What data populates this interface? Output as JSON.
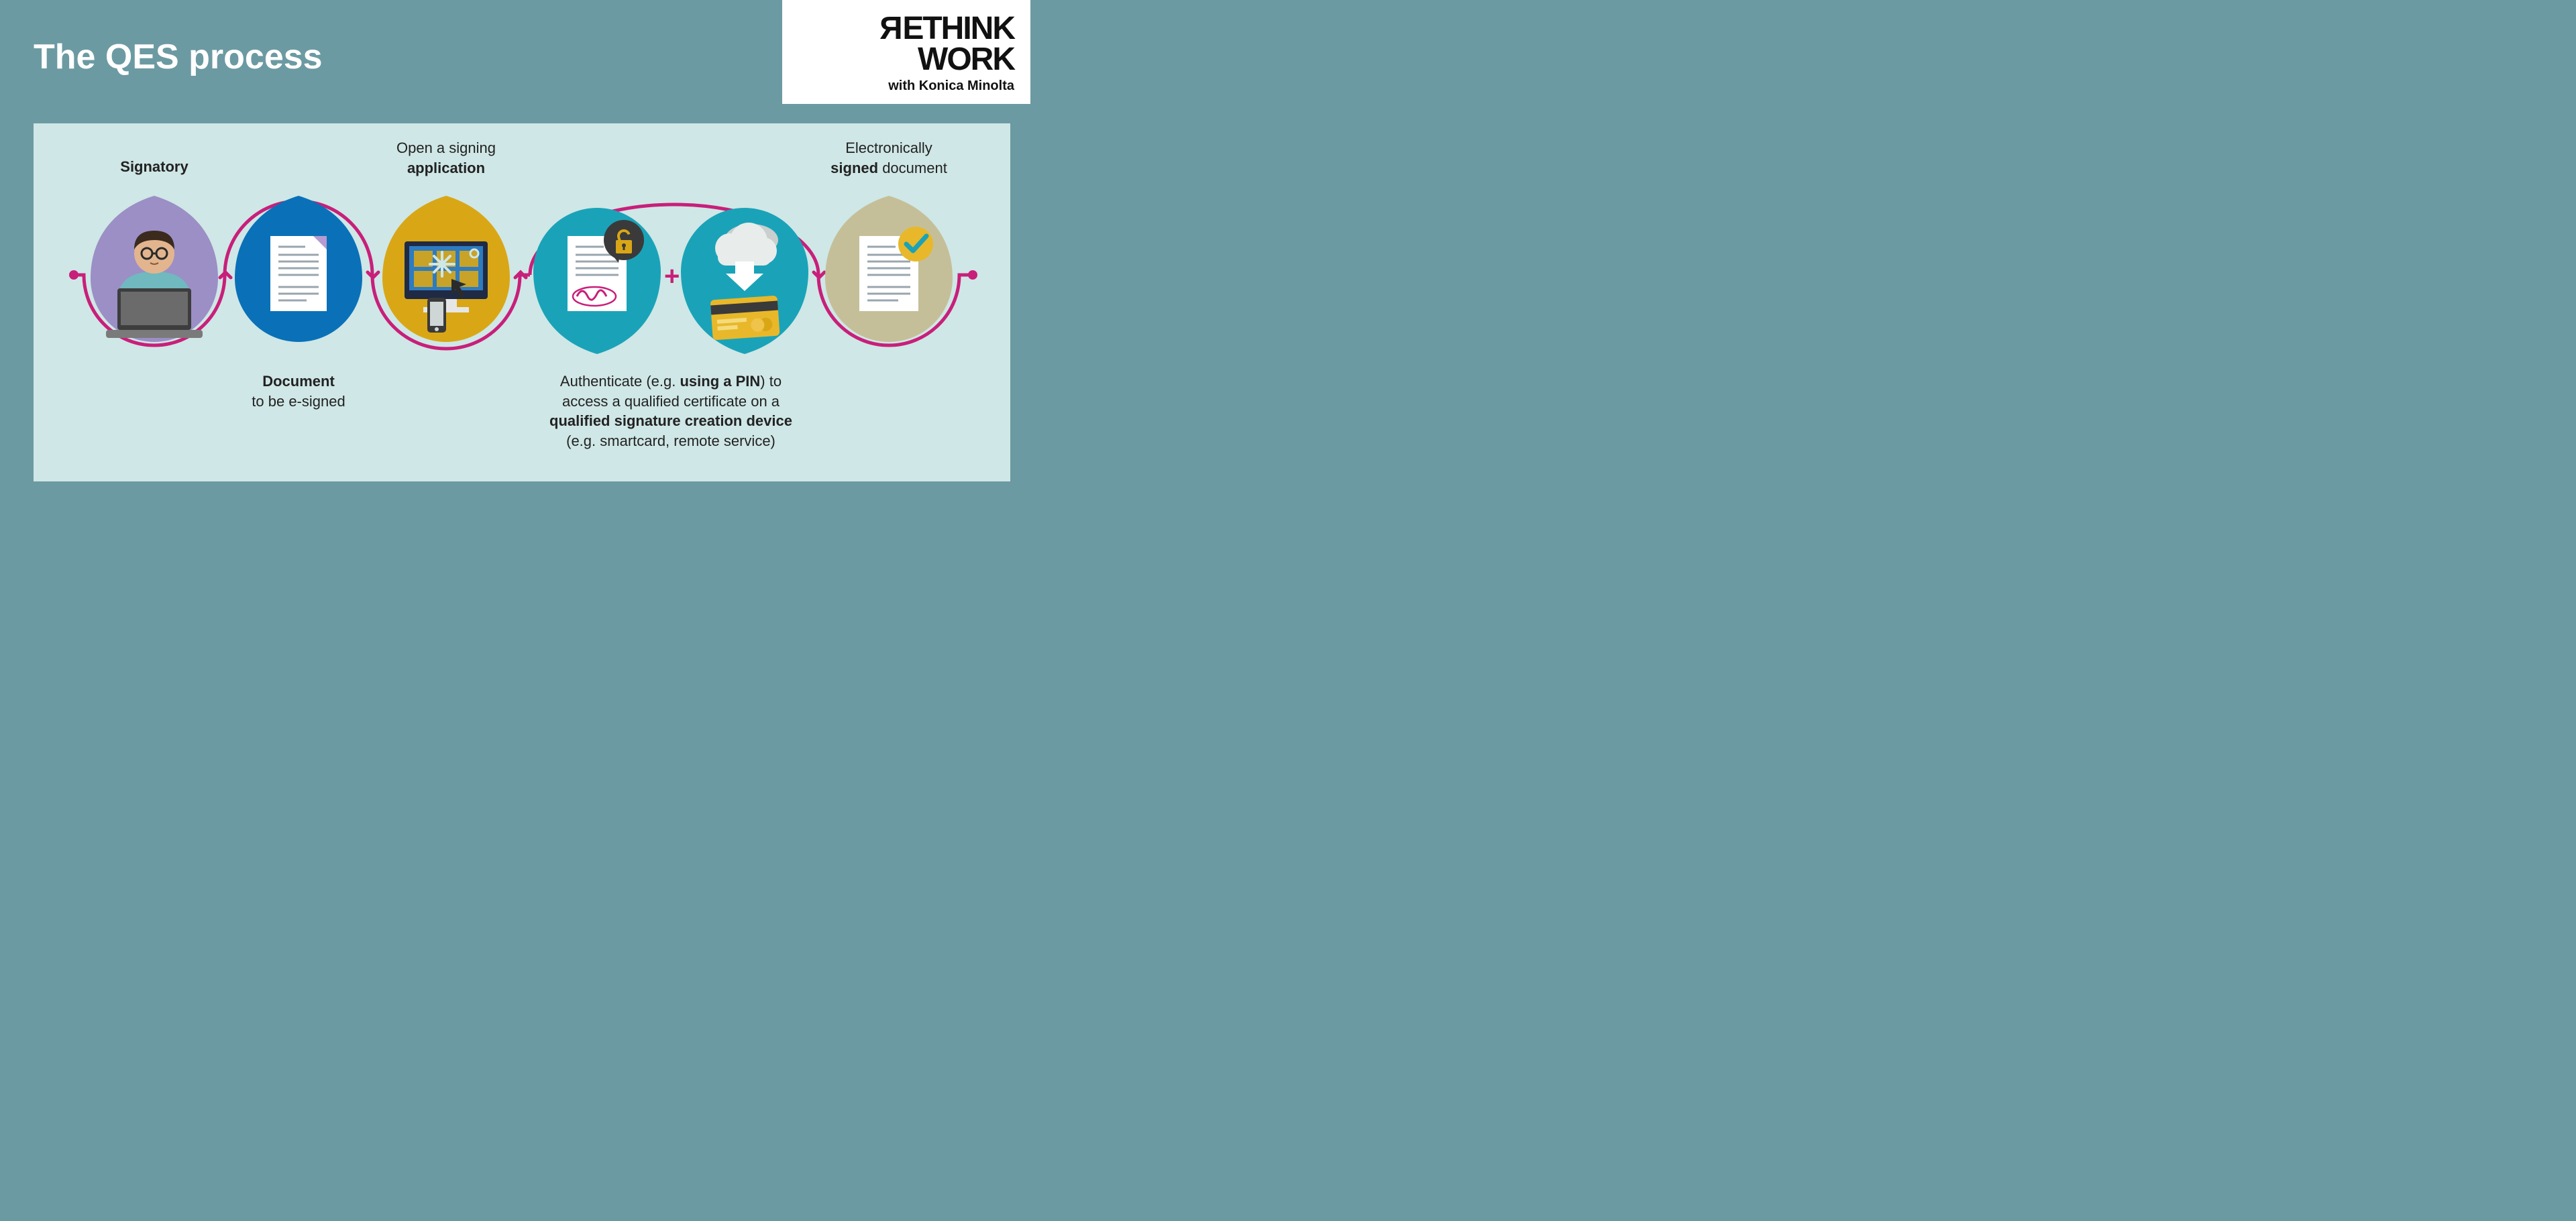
{
  "infographic": {
    "type": "process-flow",
    "title": "The QES process",
    "background_color": "#6c9aa2",
    "panel_color": "#cfe7e6",
    "path_color": "#c81f7a",
    "path_width": 5,
    "logo": {
      "line1_prefix_flipped": "R",
      "line1_rest": "ETHINK",
      "line2": "WORK",
      "sub_prefix": "with ",
      "sub_brand": "Konica Minolta",
      "bg": "#ffffff",
      "text_color": "#111111"
    },
    "steps": [
      {
        "id": "signatory",
        "label_top": "Signatory",
        "label_top_bold": true,
        "drop_color": "#9b8fc6",
        "icon": "person-laptop"
      },
      {
        "id": "document",
        "label_bottom_html": "<span class='b'>Document</span><br>to be e-signed",
        "drop_color": "#0a71b8",
        "icon": "document"
      },
      {
        "id": "application",
        "label_top_html": "Open a signing<br><span class='b'>application</span>",
        "drop_color": "#d9a716",
        "icon": "monitor-apps"
      },
      {
        "id": "authenticate",
        "drop_color": "#1aa3b8",
        "icon": "doc-lock-sign"
      },
      {
        "id": "device",
        "drop_color": "#1aa3b8",
        "icon": "cloud-card"
      },
      {
        "id": "signed",
        "label_top_html": "Electronically<br><span class='b'>signed</span> document",
        "drop_color": "#c5bf99",
        "icon": "doc-check"
      }
    ],
    "auth_caption_html": "Authenticate (e.g. <span class='b'>using a PIN</span>) to<br>access a qualified certificate on a<br><span class='b'>qualified signature creation device</span><br>(e.g. smartcard, remote service)",
    "plus_symbol": "+",
    "icon_colors": {
      "doc_paper": "#ffffff",
      "doc_lines": "#9aa6ae",
      "doc_fold": "#b59bd1",
      "monitor_body": "#1f2a44",
      "monitor_screen": "#2e7bbf",
      "monitor_tile": "#d9a716",
      "monitor_stand": "#e6e6e6",
      "cursor": "#2b2b2b",
      "lock_bubble": "#3a3a3a",
      "lock_body": "#d9a716",
      "sign_stroke": "#c81f7a",
      "cloud": "#e8eceb",
      "cloud_shadow": "#c9cfce",
      "arrow_down": "#ffffff",
      "card": "#e8b82a",
      "card_stripe": "#3a3a3a",
      "check_circle": "#e8b82a",
      "check_mark": "#1aa3b8",
      "laptop_body": "#7a7a7a",
      "laptop_screen_frame": "#3d3d3d",
      "person_skin": "#e2b58f",
      "person_hair": "#3b2a1e",
      "person_shirt": "#6fb9bf",
      "glasses": "#2a2a2a"
    }
  }
}
